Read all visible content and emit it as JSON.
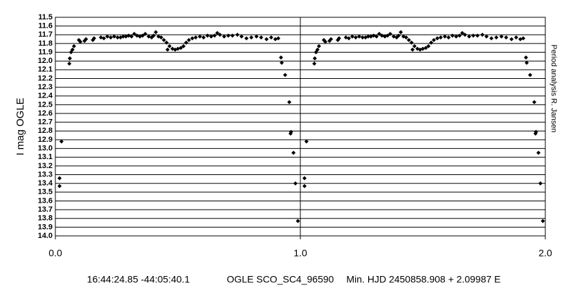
{
  "chart_data": {
    "type": "scatter",
    "y_label": "I mag OGLE",
    "side_note": "Period analysis R. Jansen",
    "caption": [
      "16:44:24.85 -44:05:40.1",
      "OGLE SCO_SC4_96590",
      "Min. HJD 2450858.908 + 2.09987 E"
    ],
    "xlim": [
      0,
      2
    ],
    "ylim": [
      11.5,
      14
    ],
    "y_inverted": true,
    "grid": true,
    "color": "#000000",
    "xticks": [
      {
        "value": 0,
        "label": "0.0"
      },
      {
        "value": 1,
        "label": "1.0"
      },
      {
        "value": 2,
        "label": "2.0"
      }
    ],
    "yticks": [
      11.5,
      11.6,
      11.7,
      11.8,
      11.9,
      {
        "value": 12,
        "label": "12.0"
      },
      12.1,
      12.2,
      12.3,
      12.4,
      12.5,
      12.6,
      12.7,
      12.8,
      12.9,
      {
        "value": 13,
        "label": "13.0"
      },
      13.1,
      13.2,
      13.3,
      13.4,
      13.5,
      13.6,
      13.7,
      13.8,
      13.9,
      {
        "value": 14,
        "label": "14.0"
      }
    ],
    "x": [
      0.017,
      0.017,
      0.025,
      0.057,
      0.059,
      0.064,
      0.07,
      0.076,
      0.096,
      0.102,
      0.119,
      0.125,
      0.153,
      0.158,
      0.186,
      0.198,
      0.212,
      0.226,
      0.24,
      0.254,
      0.266,
      0.277,
      0.288,
      0.299,
      0.311,
      0.322,
      0.333,
      0.345,
      0.356,
      0.367,
      0.381,
      0.393,
      0.401,
      0.41,
      0.421,
      0.432,
      0.443,
      0.454,
      0.458,
      0.466,
      0.478,
      0.489,
      0.5,
      0.512,
      0.523,
      0.534,
      0.545,
      0.559,
      0.573,
      0.59,
      0.605,
      0.621,
      0.636,
      0.65,
      0.661,
      0.672,
      0.689,
      0.706,
      0.723,
      0.743,
      0.76,
      0.78,
      0.8,
      0.821,
      0.84,
      0.862,
      0.881,
      0.898,
      0.91,
      0.921,
      0.924,
      0.938,
      0.955,
      0.96,
      0.962,
      0.972,
      0.98,
      0.99,
      1.017,
      1.017,
      1.025,
      1.057,
      1.059,
      1.064,
      1.07,
      1.076,
      1.096,
      1.102,
      1.119,
      1.125,
      1.153,
      1.158,
      1.186,
      1.198,
      1.212,
      1.226,
      1.24,
      1.254,
      1.266,
      1.277,
      1.288,
      1.299,
      1.311,
      1.322,
      1.333,
      1.345,
      1.356,
      1.367,
      1.381,
      1.393,
      1.401,
      1.41,
      1.421,
      1.432,
      1.443,
      1.454,
      1.458,
      1.466,
      1.478,
      1.489,
      1.5,
      1.512,
      1.523,
      1.534,
      1.545,
      1.559,
      1.573,
      1.59,
      1.605,
      1.621,
      1.636,
      1.65,
      1.661,
      1.672,
      1.689,
      1.706,
      1.723,
      1.743,
      1.76,
      1.78,
      1.8,
      1.821,
      1.84,
      1.862,
      1.881,
      1.898,
      1.91,
      1.921,
      1.924,
      1.938,
      1.955,
      1.96,
      1.962,
      1.972,
      1.98,
      1.99
    ],
    "values": [
      13.34,
      13.43,
      12.92,
      12.03,
      11.97,
      11.9,
      11.87,
      11.83,
      11.76,
      11.78,
      11.77,
      11.75,
      11.76,
      11.74,
      11.73,
      11.74,
      11.72,
      11.73,
      11.72,
      11.73,
      11.73,
      11.72,
      11.72,
      11.71,
      11.72,
      11.69,
      11.71,
      11.72,
      11.71,
      11.69,
      11.72,
      11.73,
      11.71,
      11.67,
      11.72,
      11.73,
      11.76,
      11.79,
      11.87,
      11.83,
      11.86,
      11.87,
      11.86,
      11.85,
      11.83,
      11.79,
      11.76,
      11.74,
      11.73,
      11.72,
      11.73,
      11.71,
      11.72,
      11.71,
      11.68,
      11.7,
      11.72,
      11.71,
      11.71,
      11.7,
      11.72,
      11.74,
      11.73,
      11.72,
      11.73,
      11.75,
      11.73,
      11.75,
      11.74,
      11.96,
      12.02,
      12.16,
      12.47,
      12.83,
      12.81,
      13.05,
      13.4,
      13.83,
      13.34,
      13.43,
      12.92,
      12.03,
      11.97,
      11.9,
      11.87,
      11.83,
      11.76,
      11.78,
      11.77,
      11.75,
      11.76,
      11.74,
      11.73,
      11.74,
      11.72,
      11.73,
      11.72,
      11.73,
      11.73,
      11.72,
      11.72,
      11.71,
      11.72,
      11.69,
      11.71,
      11.72,
      11.71,
      11.69,
      11.72,
      11.73,
      11.71,
      11.67,
      11.72,
      11.73,
      11.76,
      11.79,
      11.87,
      11.83,
      11.86,
      11.87,
      11.86,
      11.85,
      11.83,
      11.79,
      11.76,
      11.74,
      11.73,
      11.72,
      11.73,
      11.71,
      11.72,
      11.71,
      11.68,
      11.7,
      11.72,
      11.71,
      11.71,
      11.7,
      11.72,
      11.74,
      11.73,
      11.72,
      11.73,
      11.75,
      11.73,
      11.75,
      11.74,
      11.96,
      12.02,
      12.16,
      12.47,
      12.83,
      12.81,
      13.05,
      13.4,
      13.83
    ]
  }
}
